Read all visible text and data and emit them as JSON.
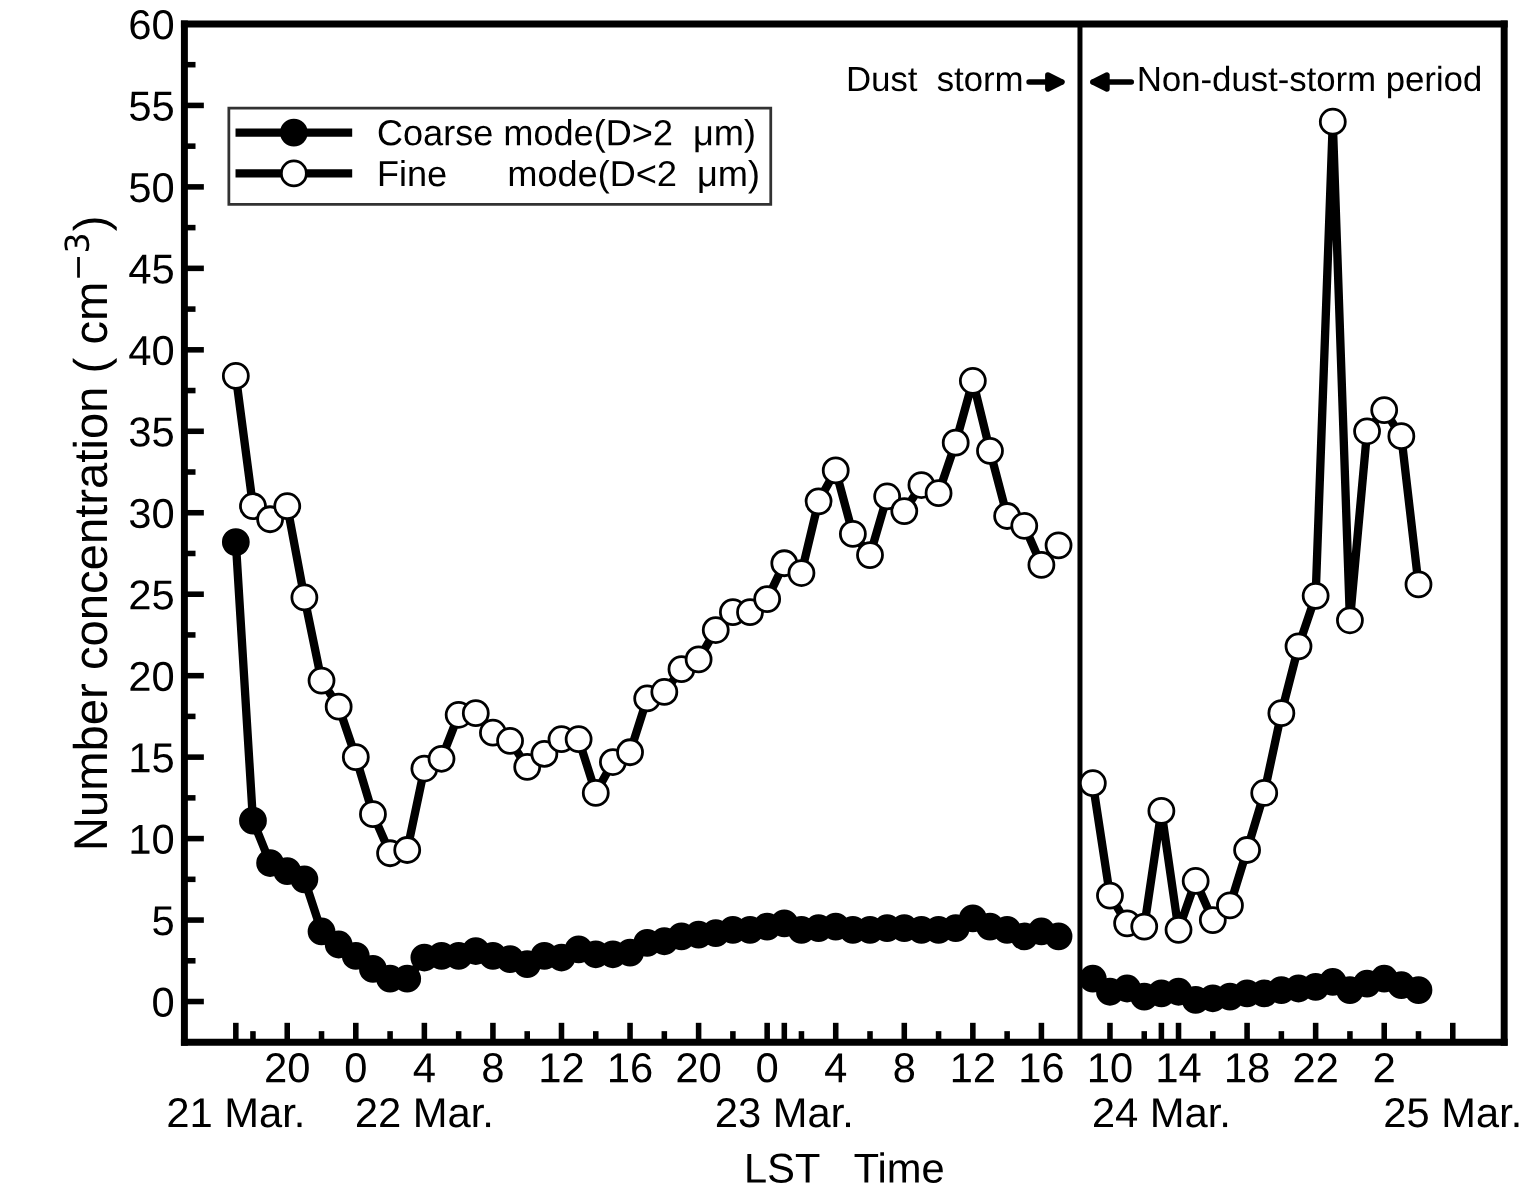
{
  "chart_data": {
    "type": "line",
    "xlabel": "LST   Time",
    "ylabel": "Number concentration ( cm$^{−3}$)",
    "categories": [
      "\n21 Mar.",
      null,
      null,
      "20",
      null,
      null,
      null,
      "0",
      null,
      null,
      null,
      "4\n22 Mar.",
      null,
      null,
      null,
      "8",
      null,
      null,
      null,
      "12",
      null,
      null,
      null,
      "16",
      null,
      null,
      null,
      "20",
      null,
      null,
      null,
      "0",
      "\n23 Mar.",
      null,
      null,
      "4",
      null,
      null,
      null,
      "8",
      null,
      null,
      null,
      "12",
      null,
      null,
      null,
      "16",
      null,
      null,
      null,
      "10",
      null,
      null,
      "\n24 Mar.",
      "14",
      null,
      null,
      null,
      "18",
      null,
      null,
      null,
      "22",
      null,
      null,
      null,
      "2",
      null,
      null,
      null,
      "\n25 Mar."
    ],
    "ylim": [
      -2.5,
      60
    ],
    "yticks": [
      0,
      5,
      10,
      15,
      20,
      25,
      30,
      35,
      40,
      45,
      50,
      55,
      60
    ],
    "marker": "circle",
    "line_style": "solid",
    "grid": false,
    "legend": "top left",
    "annotations": [
      "Dust  storm",
      "Non-dust-storm period"
    ],
    "series": [
      {
        "name": "Coarse mode(D>2  μm)",
        "color": "#000000",
        "values": [
          28.2,
          11.1,
          8.5,
          8.0,
          7.5,
          4.3,
          3.5,
          2.8,
          2.0,
          1.4,
          1.4,
          2.7,
          2.8,
          2.8,
          3.1,
          2.8,
          2.6,
          2.3,
          2.8,
          2.7,
          3.2,
          2.9,
          2.9,
          3.0,
          3.6,
          3.7,
          4.0,
          4.1,
          4.2,
          4.4,
          4.4,
          4.6,
          4.8,
          4.4,
          4.5,
          4.6,
          4.4,
          4.4,
          4.5,
          4.5,
          4.4,
          4.4,
          4.5,
          5.1,
          4.6,
          4.4,
          4.0,
          4.3,
          4.0,
          null,
          1.4,
          0.6,
          0.8,
          0.3,
          0.5,
          0.6,
          0.1,
          0.2,
          0.3,
          0.5,
          0.5,
          0.7,
          0.8,
          0.9,
          1.2,
          0.7,
          1.1,
          1.4,
          1.0,
          0.7,
          null,
          null
        ]
      },
      {
        "name": "Fine      mode(D<2  μm)",
        "color": "#ffffff",
        "values": [
          38.4,
          30.4,
          29.6,
          30.4,
          24.8,
          19.7,
          18.1,
          15.0,
          11.5,
          9.1,
          9.3,
          14.3,
          14.9,
          17.6,
          17.7,
          16.5,
          16.0,
          14.4,
          15.2,
          16.1,
          16.1,
          12.8,
          14.7,
          15.3,
          18.6,
          19.0,
          20.4,
          21.0,
          22.8,
          23.9,
          23.9,
          24.7,
          26.9,
          26.3,
          30.7,
          32.6,
          28.7,
          27.4,
          31.0,
          30.1,
          31.7,
          31.2,
          34.3,
          38.1,
          33.8,
          29.8,
          29.2,
          26.8,
          28.0,
          null,
          13.4,
          6.5,
          4.8,
          4.6,
          11.7,
          4.4,
          7.4,
          5.0,
          5.9,
          9.3,
          12.8,
          17.7,
          21.8,
          24.9,
          54.0,
          23.4,
          35.0,
          36.3,
          34.7,
          25.6,
          null,
          null
        ]
      }
    ]
  }
}
